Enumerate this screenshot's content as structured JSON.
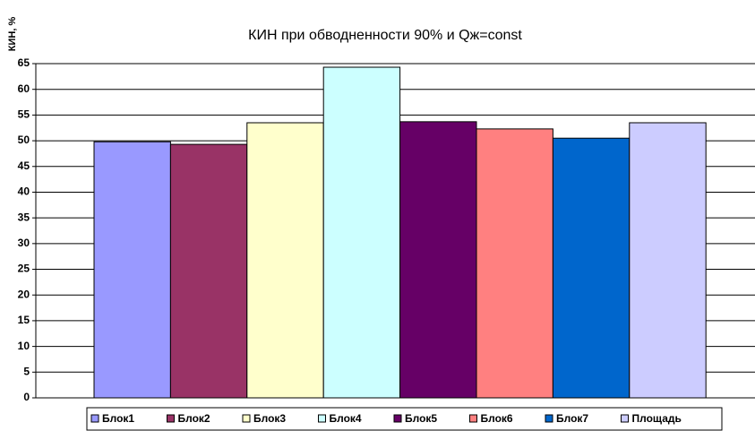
{
  "chart_data": {
    "type": "bar",
    "title": "КИН при обводненности 90% и Qж=const",
    "y_label": "КИН, %",
    "series": [
      {
        "name": "Блок1",
        "color": "#9999ff",
        "values": [
          49.8
        ]
      },
      {
        "name": "Блок2",
        "color": "#993366",
        "values": [
          49.3
        ]
      },
      {
        "name": "Блок3",
        "color": "#ffffcc",
        "values": [
          53.5
        ]
      },
      {
        "name": "Блок4",
        "color": "#ccffff",
        "values": [
          64.3
        ]
      },
      {
        "name": "Блок5",
        "color": "#660066",
        "values": [
          53.7
        ]
      },
      {
        "name": "Блок6",
        "color": "#ff8080",
        "values": [
          52.3
        ]
      },
      {
        "name": "Блок7",
        "color": "#0066cc",
        "values": [
          50.5
        ]
      },
      {
        "name": "Площадь",
        "color": "#ccccff",
        "values": [
          53.5
        ]
      }
    ],
    "ylim": [
      0,
      65
    ],
    "yticks": [
      0,
      5,
      10,
      15,
      20,
      25,
      30,
      35,
      40,
      45,
      50,
      55,
      60,
      65
    ],
    "grid": true,
    "legend": "bottom"
  }
}
